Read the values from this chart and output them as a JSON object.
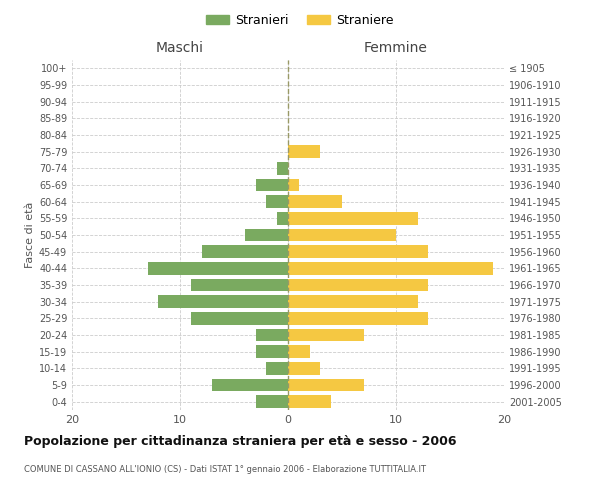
{
  "age_groups": [
    "0-4",
    "5-9",
    "10-14",
    "15-19",
    "20-24",
    "25-29",
    "30-34",
    "35-39",
    "40-44",
    "45-49",
    "50-54",
    "55-59",
    "60-64",
    "65-69",
    "70-74",
    "75-79",
    "80-84",
    "85-89",
    "90-94",
    "95-99",
    "100+"
  ],
  "birth_years": [
    "2001-2005",
    "1996-2000",
    "1991-1995",
    "1986-1990",
    "1981-1985",
    "1976-1980",
    "1971-1975",
    "1966-1970",
    "1961-1965",
    "1956-1960",
    "1951-1955",
    "1946-1950",
    "1941-1945",
    "1936-1940",
    "1931-1935",
    "1926-1930",
    "1921-1925",
    "1916-1920",
    "1911-1915",
    "1906-1910",
    "≤ 1905"
  ],
  "males": [
    3,
    7,
    2,
    3,
    3,
    9,
    12,
    9,
    13,
    8,
    4,
    1,
    2,
    3,
    1,
    0,
    0,
    0,
    0,
    0,
    0
  ],
  "females": [
    4,
    7,
    3,
    2,
    7,
    13,
    12,
    13,
    19,
    13,
    10,
    12,
    5,
    1,
    0,
    3,
    0,
    0,
    0,
    0,
    0
  ],
  "male_color": "#7aaa60",
  "female_color": "#f5c842",
  "grid_color": "#cccccc",
  "center_line_color": "#999966",
  "title": "Popolazione per cittadinanza straniera per età e sesso - 2006",
  "subtitle": "COMUNE DI CASSANO ALL'IONIO (CS) - Dati ISTAT 1° gennaio 2006 - Elaborazione TUTTITALIA.IT",
  "ylabel_left": "Fasce di età",
  "xlabel_left": "Maschi",
  "xlabel_right": "Femmine",
  "legend_male": "Stranieri",
  "legend_female": "Straniere",
  "xlim": 20,
  "bar_height": 0.75
}
